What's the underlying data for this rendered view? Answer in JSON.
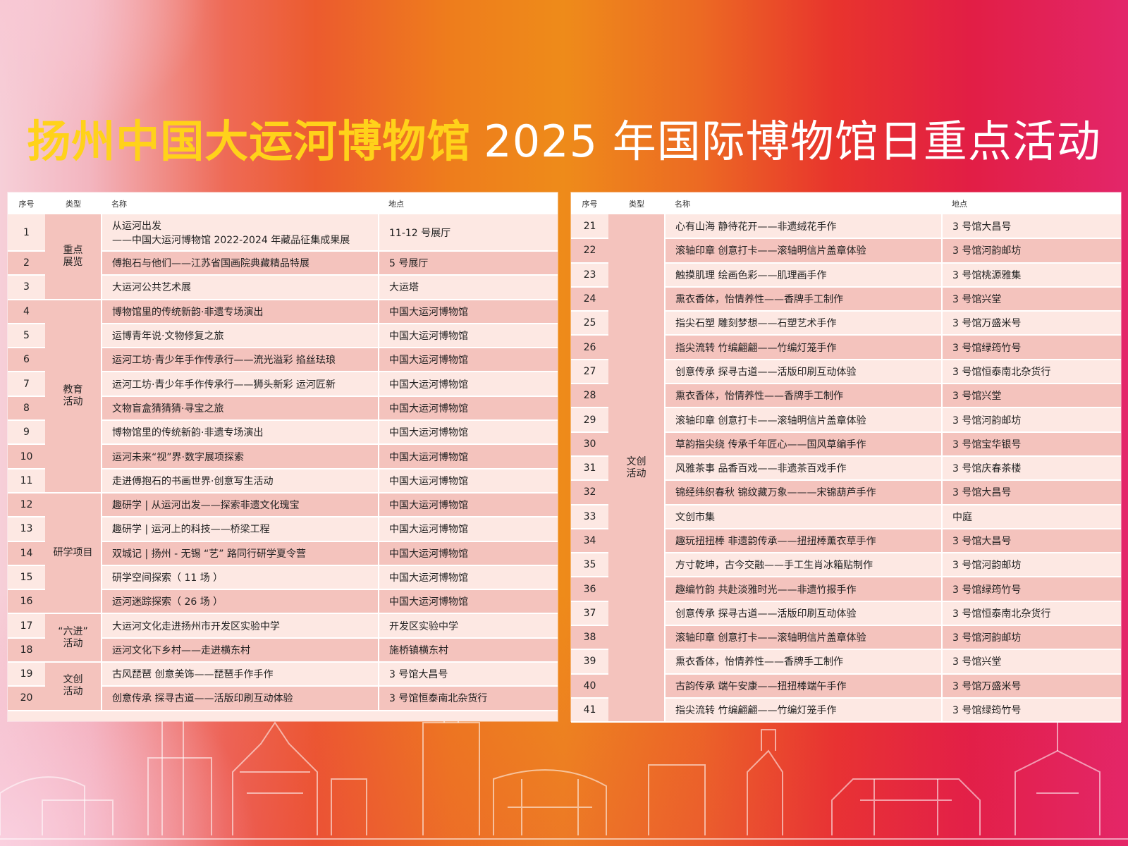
{
  "title": {
    "highlight": "扬州中国大运河博物馆",
    "rest": "2025 年国际博物馆日重点活动"
  },
  "headers": [
    "序号",
    "类型",
    "名称",
    "地点"
  ],
  "left_groups": [
    {
      "type": "重点\n展览",
      "rows": [
        {
          "no": "1",
          "name": "从运河出发",
          "name2": "——中国大运河博物馆 2022-2024 年藏品征集成果展",
          "place": "11-12 号展厅"
        },
        {
          "no": "2",
          "name": "傅抱石与他们——江苏省国画院典藏精品特展",
          "place": "5 号展厅"
        },
        {
          "no": "3",
          "name": "大运河公共艺术展",
          "place": "大运塔"
        }
      ]
    },
    {
      "type": "教育\n活动",
      "rows": [
        {
          "no": "4",
          "name": "博物馆里的传统新韵·非遗专场演出",
          "place": "中国大运河博物馆"
        },
        {
          "no": "5",
          "name": "运博青年说·文物修复之旅",
          "place": "中国大运河博物馆"
        },
        {
          "no": "6",
          "name": "运河工坊·青少年手作传承行——流光溢彩 掐丝珐琅",
          "place": "中国大运河博物馆"
        },
        {
          "no": "7",
          "name": "运河工坊·青少年手作传承行——狮头新彩 运河匠新",
          "place": "中国大运河博物馆"
        },
        {
          "no": "8",
          "name": "文物盲盒猜猜猜·寻宝之旅",
          "place": "中国大运河博物馆"
        },
        {
          "no": "9",
          "name": "博物馆里的传统新韵·非遗专场演出",
          "place": "中国大运河博物馆"
        },
        {
          "no": "10",
          "name": "运河未来“视”界·数字展项探索",
          "place": "中国大运河博物馆"
        },
        {
          "no": "11",
          "name": "走进傅抱石的书画世界·创意写生活动",
          "place": "中国大运河博物馆"
        }
      ]
    },
    {
      "type": "研学项目",
      "rows": [
        {
          "no": "12",
          "name": "趣研学 | 从运河出发——探索非遗文化瑰宝",
          "place": "中国大运河博物馆"
        },
        {
          "no": "13",
          "name": "趣研学 | 运河上的科技——桥梁工程",
          "place": "中国大运河博物馆"
        },
        {
          "no": "14",
          "name": "双城记 | 扬州 - 无锡 “艺” 路同行研学夏令营",
          "place": "中国大运河博物馆"
        },
        {
          "no": "15",
          "name": "研学空间探索（ 11 场 ）",
          "place": "中国大运河博物馆"
        },
        {
          "no": "16",
          "name": "运河迷踪探索（ 26 场 ）",
          "place": "中国大运河博物馆"
        }
      ]
    },
    {
      "type": "“六进”\n活动",
      "rows": [
        {
          "no": "17",
          "name": "大运河文化走进扬州市开发区实验中学",
          "place": "开发区实验中学"
        },
        {
          "no": "18",
          "name": "运河文化下乡村——走进横东村",
          "place": "施桥镇横东村"
        }
      ]
    },
    {
      "type": "文创\n活动",
      "rows": [
        {
          "no": "19",
          "name": "古风琵琶 创意美饰——琵琶手作手作",
          "place": "3 号馆大昌号"
        },
        {
          "no": "20",
          "name": "创意传承 探寻古道——活版印刷互动体验",
          "place": "3 号馆恒泰南北杂货行"
        }
      ]
    }
  ],
  "right_groups": [
    {
      "type": "文创\n活动",
      "rows": [
        {
          "no": "21",
          "name": "心有山海 静待花开——非遗绒花手作",
          "place": "3 号馆大昌号"
        },
        {
          "no": "22",
          "name": "滚轴印章 创意打卡——滚轴明信片盖章体验",
          "place": "3 号馆河韵邮坊"
        },
        {
          "no": "23",
          "name": "触摸肌理 绘画色彩——肌理画手作",
          "place": "3 号馆桃源雅集"
        },
        {
          "no": "24",
          "name": "熏衣香体，怡情养性——香牌手工制作",
          "place": "3 号馆兴堂"
        },
        {
          "no": "25",
          "name": "指尖石塑 雕刻梦想——石塑艺术手作",
          "place": "3 号馆万盛米号"
        },
        {
          "no": "26",
          "name": "指尖流转 竹编翩翩——竹编灯笼手作",
          "place": "3 号馆绿筠竹号"
        },
        {
          "no": "27",
          "name": "创意传承 探寻古道——活版印刷互动体验",
          "place": "3 号馆恒泰南北杂货行"
        },
        {
          "no": "28",
          "name": "熏衣香体，怡情养性——香牌手工制作",
          "place": "3 号馆兴堂"
        },
        {
          "no": "29",
          "name": "滚轴印章 创意打卡——滚轴明信片盖章体验",
          "place": "3 号馆河韵邮坊"
        },
        {
          "no": "30",
          "name": "草韵指尖绕 传承千年匠心——国风草编手作",
          "place": "3 号馆宝华银号"
        },
        {
          "no": "31",
          "name": "风雅茶事 品香百戏——非遗茶百戏手作",
          "place": "3 号馆庆春茶楼"
        },
        {
          "no": "32",
          "name": "锦经纬织春秋 锦纹藏万象———宋锦葫芦手作",
          "place": "3 号馆大昌号"
        },
        {
          "no": "33",
          "name": "文创市集",
          "place": "中庭"
        },
        {
          "no": "34",
          "name": "趣玩扭扭棒 非遗韵传承——扭扭棒薰衣草手作",
          "place": "3 号馆大昌号"
        },
        {
          "no": "35",
          "name": "方寸乾坤，古今交融——手工生肖冰箱贴制作",
          "place": "3 号馆河韵邮坊"
        },
        {
          "no": "36",
          "name": "趣编竹韵 共赴淡雅时光——非遗竹报手作",
          "place": "3 号馆绿筠竹号"
        },
        {
          "no": "37",
          "name": "创意传承 探寻古道——活版印刷互动体验",
          "place": "3 号馆恒泰南北杂货行"
        },
        {
          "no": "38",
          "name": "滚轴印章 创意打卡——滚轴明信片盖章体验",
          "place": "3 号馆河韵邮坊"
        },
        {
          "no": "39",
          "name": "熏衣香体，怡情养性——香牌手工制作",
          "place": "3 号馆兴堂"
        },
        {
          "no": "40",
          "name": "古韵传承 端午安康——扭扭棒端午手作",
          "place": "3 号馆万盛米号"
        },
        {
          "no": "41",
          "name": "指尖流转 竹编翩翩——竹编灯笼手作",
          "place": "3 号馆绿筠竹号"
        }
      ]
    }
  ]
}
